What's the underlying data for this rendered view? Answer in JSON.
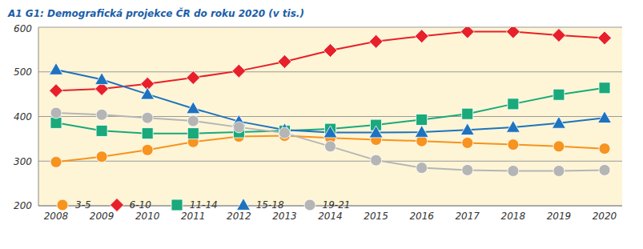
{
  "chart_data": {
    "type": "line",
    "title": "A1 G1: Demografická projekce ČR do roku 2020 (v tis.)",
    "categories": [
      "2008",
      "2009",
      "2010",
      "2011",
      "2012",
      "2013",
      "2014",
      "2015",
      "2016",
      "2017",
      "2018",
      "2019",
      "2020"
    ],
    "series": [
      {
        "name": "3-5",
        "color": "#f7931e",
        "marker": "circle",
        "values": [
          298,
          310,
          325,
          343,
          355,
          357,
          352,
          348,
          345,
          341,
          337,
          333,
          328
        ]
      },
      {
        "name": "6-10",
        "color": "#e8202a",
        "marker": "diamond",
        "values": [
          458,
          462,
          473,
          487,
          502,
          523,
          548,
          568,
          580,
          590,
          590,
          582,
          576
        ]
      },
      {
        "name": "11-14",
        "color": "#1aa97a",
        "marker": "square",
        "values": [
          386,
          368,
          362,
          362,
          365,
          368,
          372,
          381,
          393,
          406,
          428,
          449,
          464
        ]
      },
      {
        "name": "15-18",
        "color": "#1e73be",
        "marker": "triangle",
        "values": [
          505,
          483,
          450,
          418,
          389,
          370,
          364,
          364,
          365,
          370,
          376,
          385,
          397
        ]
      },
      {
        "name": "19-21",
        "color": "#b5b5b5",
        "marker": "circle",
        "values": [
          408,
          404,
          397,
          390,
          376,
          363,
          333,
          302,
          285,
          280,
          278,
          278,
          280
        ]
      }
    ],
    "ylim": [
      200,
      600
    ],
    "yticks": [
      200,
      300,
      400,
      500,
      600
    ],
    "grid": true,
    "legend": "lower left"
  }
}
